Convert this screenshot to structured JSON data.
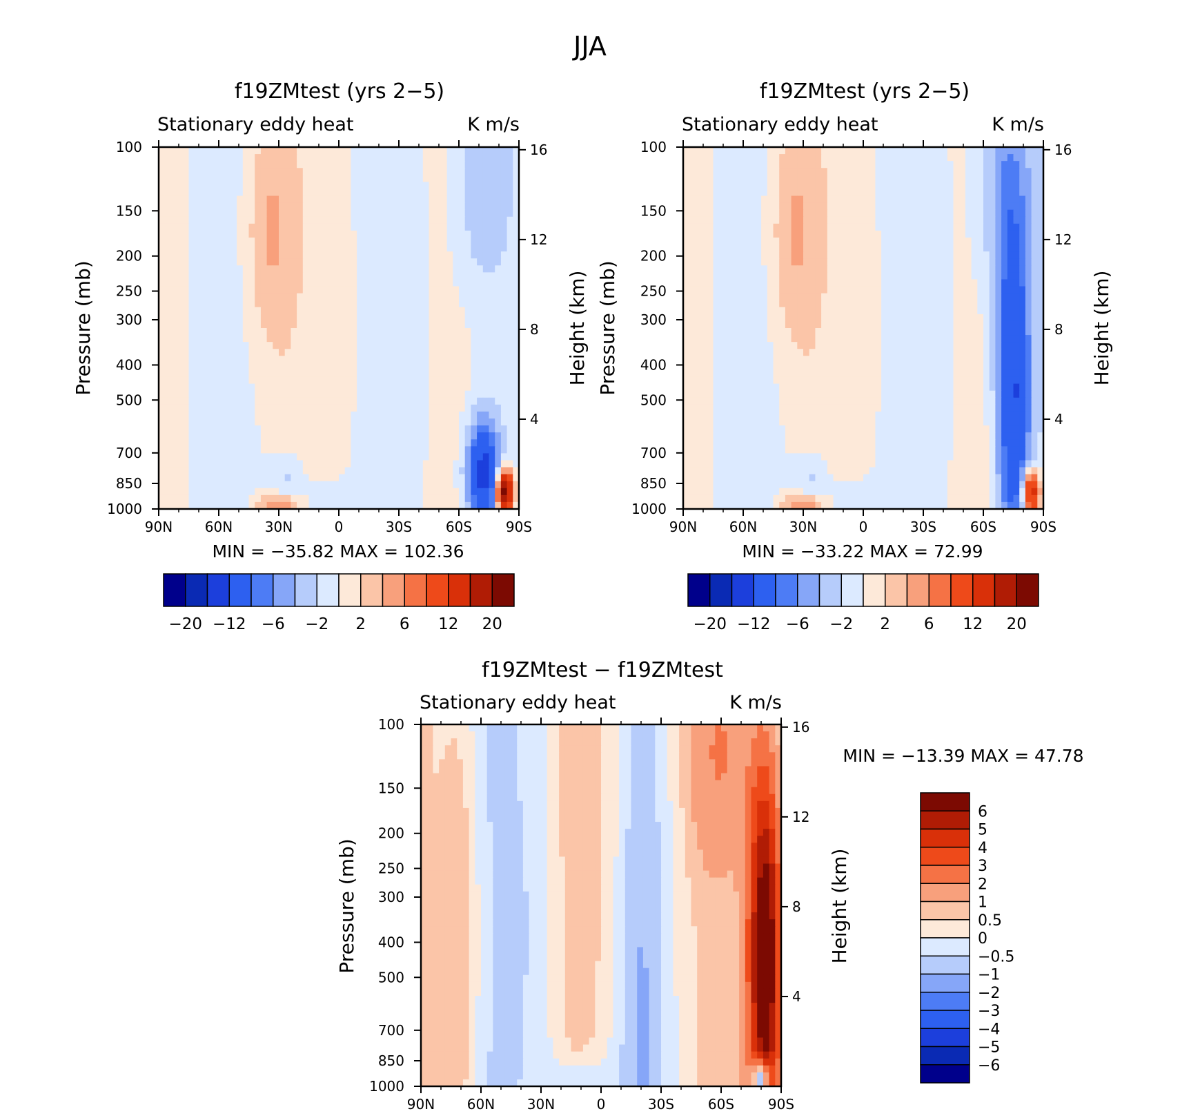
{
  "figure_title": "JJA",
  "chart_data": [
    {
      "type": "heatmap",
      "id": "p1",
      "title": "f19ZMtest (yrs 2−5)",
      "left_label": "Stationary eddy heat",
      "right_label": "K m/s",
      "ylabel": "Pressure (mb)",
      "y2label": "Height (km)",
      "x_ticks": [
        "90N",
        "60N",
        "30N",
        "0",
        "30S",
        "60S",
        "90S"
      ],
      "y_ticks": [
        "100",
        "150",
        "200",
        "250",
        "300",
        "400",
        "500",
        "700",
        "850",
        "1000"
      ],
      "y2_ticks": [
        "16",
        "12",
        "8",
        "4"
      ],
      "minmax": "MIN = −35.82   MAX = 102.36",
      "colorbar_labels": [
        "−20",
        "−12",
        "−6",
        "−2",
        "2",
        "6",
        "12",
        "20"
      ],
      "field": [
        {
          "lat": 35,
          "p": 170,
          "v": 4,
          "sx": 9,
          "sp": 0.55
        },
        {
          "lat": 30,
          "p": 980,
          "v": 6,
          "sx": 8,
          "sp": 0.05
        },
        {
          "lat": 25,
          "p": 820,
          "v": -3,
          "sx": 6,
          "sp": 0.12
        },
        {
          "lat": -70,
          "p": 120,
          "v": -4,
          "sx": 10,
          "sp": 0.6
        },
        {
          "lat": -72,
          "p": 800,
          "v": -14,
          "sx": 6,
          "sp": 0.25
        },
        {
          "lat": -83,
          "p": 900,
          "v": 25,
          "sx": 3,
          "sp": 0.1
        },
        {
          "lat": -10,
          "p": 300,
          "v": 0.8,
          "sx": 15,
          "sp": 1.2
        },
        {
          "lat": -40,
          "p": 400,
          "v": -0.7,
          "sx": 10,
          "sp": 1.5
        },
        {
          "lat": 10,
          "p": 950,
          "v": -2,
          "sx": 10,
          "sp": 0.1
        }
      ]
    },
    {
      "type": "heatmap",
      "id": "p2",
      "title": "f19ZMtest (yrs 2−5)",
      "left_label": "Stationary eddy heat",
      "right_label": "K m/s",
      "ylabel": "Pressure (mb)",
      "y2label": "Height (km)",
      "x_ticks": [
        "90N",
        "60N",
        "30N",
        "0",
        "30S",
        "60S",
        "90S"
      ],
      "y_ticks": [
        "100",
        "150",
        "200",
        "250",
        "300",
        "400",
        "500",
        "700",
        "850",
        "1000"
      ],
      "y2_ticks": [
        "16",
        "12",
        "8",
        "4"
      ],
      "minmax": "MIN = −33.22   MAX =  72.99",
      "colorbar_labels": [
        "−20",
        "−12",
        "−6",
        "−2",
        "2",
        "6",
        "12",
        "20"
      ],
      "field": [
        {
          "lat": 35,
          "p": 170,
          "v": 4,
          "sx": 9,
          "sp": 0.55
        },
        {
          "lat": 30,
          "p": 980,
          "v": 6,
          "sx": 8,
          "sp": 0.05
        },
        {
          "lat": 25,
          "p": 820,
          "v": -3,
          "sx": 6,
          "sp": 0.12
        },
        {
          "lat": -70,
          "p": 120,
          "v": -5,
          "sx": 10,
          "sp": 0.6
        },
        {
          "lat": -75,
          "p": 500,
          "v": -12,
          "sx": 6,
          "sp": 0.8
        },
        {
          "lat": -84,
          "p": 900,
          "v": 18,
          "sx": 3,
          "sp": 0.1
        },
        {
          "lat": -10,
          "p": 300,
          "v": 0.8,
          "sx": 15,
          "sp": 1.2
        },
        {
          "lat": -40,
          "p": 400,
          "v": -0.7,
          "sx": 10,
          "sp": 1.5
        },
        {
          "lat": 10,
          "p": 950,
          "v": -2,
          "sx": 10,
          "sp": 0.1
        }
      ]
    },
    {
      "type": "heatmap",
      "id": "p3",
      "title": "f19ZMtest − f19ZMtest",
      "left_label": "Stationary eddy heat",
      "right_label": "K m/s",
      "ylabel": "Pressure (mb)",
      "y2label": "Height (km)",
      "x_ticks": [
        "90N",
        "60N",
        "30N",
        "0",
        "30S",
        "60S",
        "90S"
      ],
      "y_ticks": [
        "100",
        "150",
        "200",
        "250",
        "300",
        "400",
        "500",
        "700",
        "850",
        "1000"
      ],
      "y2_ticks": [
        "16",
        "12",
        "8",
        "4"
      ],
      "minmax": "MIN = −13.39   MAX =  47.78",
      "colorbar_labels": [
        "6",
        "5",
        "4",
        "3",
        "2",
        "1",
        "0.5",
        "0",
        "−0.5",
        "−1",
        "−2",
        "−3",
        "−4",
        "−5",
        "−6"
      ],
      "field": [
        {
          "lat": -82,
          "p": 450,
          "v": 8,
          "sx": 6,
          "sp": 0.9
        },
        {
          "lat": -60,
          "p": 120,
          "v": 1.5,
          "sx": 12,
          "sp": 0.5
        },
        {
          "lat": -80,
          "p": 950,
          "v": -6,
          "sx": 3,
          "sp": 0.08
        },
        {
          "lat": 70,
          "p": 400,
          "v": 1.2,
          "sx": 7,
          "sp": 1.2
        },
        {
          "lat": 30,
          "p": 300,
          "v": -0.8,
          "sx": 10,
          "sp": 2.0
        },
        {
          "lat": -20,
          "p": 450,
          "v": -0.7,
          "sx": 8,
          "sp": 1.5
        },
        {
          "lat": 10,
          "p": 950,
          "v": -0.8,
          "sx": 10,
          "sp": 0.1
        },
        {
          "lat": 0,
          "p": 150,
          "v": 0.6,
          "sx": 20,
          "sp": 1.5
        }
      ]
    }
  ],
  "colors": {
    "diverging": [
      "#00008b",
      "#0a2ab4",
      "#1c3fdc",
      "#2d60f0",
      "#4d7cf5",
      "#86a6f8",
      "#b6ccfb",
      "#dceaff",
      "#fde9d9",
      "#fbc5a8",
      "#f8a07c",
      "#f57245",
      "#ee4a1a",
      "#d93009",
      "#b01c05",
      "#7c0a02"
    ],
    "cbar3": [
      "#00008b",
      "#0a2ab4",
      "#1c3fdc",
      "#2d60f0",
      "#4d7cf5",
      "#86a6f8",
      "#b6ccfb",
      "#dceaff",
      "#fde9d9",
      "#fbc5a8",
      "#f8a07c",
      "#f57245",
      "#ee4a1a",
      "#d93009",
      "#b01c05",
      "#7c0a02"
    ]
  }
}
